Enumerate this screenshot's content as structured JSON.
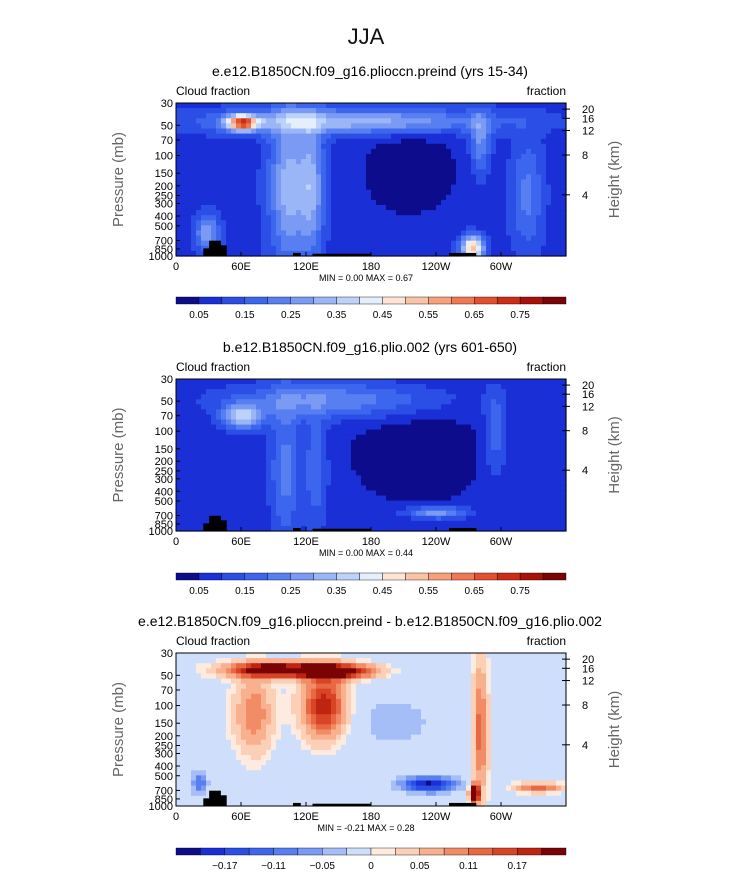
{
  "figure": {
    "season_title": "JJA"
  },
  "chart_data": [
    {
      "type": "heatmap",
      "title": "e.e12.B1850CN.f09_g16.plioccn.preind (yrs 15-34)",
      "left_label": "Cloud fraction",
      "right_label": "fraction",
      "ylabel": "Pressure (mb)",
      "y2label": "Height (km)",
      "x_ticks": [
        "0",
        "60E",
        "120E",
        "180",
        "120W",
        "60W"
      ],
      "x_range": [
        0,
        360
      ],
      "y_ticks": [
        "30",
        "50",
        "70",
        "100",
        "150",
        "200",
        "250",
        "300",
        "400",
        "500",
        "700",
        "850",
        "1000"
      ],
      "y_range_mb": [
        30,
        1000
      ],
      "height_ticks": [
        "20",
        "16",
        "12",
        "8",
        "4"
      ],
      "stats": {
        "min_label": "MIN =",
        "min": "0.00",
        "max_label": "MAX =",
        "max": "0.67"
      },
      "colorbar": {
        "labels": [
          "0.05",
          "0.15",
          "0.25",
          "0.35",
          "0.45",
          "0.55",
          "0.65",
          "0.75"
        ],
        "colors": [
          "#0c0c8c",
          "#1a2fd6",
          "#2b4fe6",
          "#3d66ee",
          "#587ff1",
          "#7a9af4",
          "#9bb6f7",
          "#bdd2fa",
          "#e4eefc",
          "#fde4d4",
          "#fbc3a6",
          "#f7a07c",
          "#f07853",
          "#e4502d",
          "#cc2d14",
          "#a81008",
          "#7a0404"
        ]
      },
      "field_kind": "cloud_a"
    },
    {
      "type": "heatmap",
      "title": "b.e12.B1850CN.f09_g16.plio.002 (yrs 601-650)",
      "left_label": "Cloud fraction",
      "right_label": "fraction",
      "ylabel": "Pressure (mb)",
      "y2label": "Height (km)",
      "x_ticks": [
        "0",
        "60E",
        "120E",
        "180",
        "120W",
        "60W"
      ],
      "x_range": [
        0,
        360
      ],
      "y_ticks": [
        "30",
        "50",
        "70",
        "100",
        "150",
        "200",
        "250",
        "300",
        "400",
        "500",
        "700",
        "850",
        "1000"
      ],
      "y_range_mb": [
        30,
        1000
      ],
      "height_ticks": [
        "20",
        "16",
        "12",
        "8",
        "4"
      ],
      "stats": {
        "min_label": "MIN =",
        "min": "0.00",
        "max_label": "MAX =",
        "max": "0.44"
      },
      "colorbar": {
        "labels": [
          "0.05",
          "0.15",
          "0.25",
          "0.35",
          "0.45",
          "0.55",
          "0.65",
          "0.75"
        ],
        "colors": [
          "#0c0c8c",
          "#1a2fd6",
          "#2b4fe6",
          "#3d66ee",
          "#587ff1",
          "#7a9af4",
          "#9bb6f7",
          "#bdd2fa",
          "#e4eefc",
          "#fde4d4",
          "#fbc3a6",
          "#f7a07c",
          "#f07853",
          "#e4502d",
          "#cc2d14",
          "#a81008",
          "#7a0404"
        ]
      },
      "field_kind": "cloud_b"
    },
    {
      "type": "heatmap",
      "title": "e.e12.B1850CN.f09_g16.plioccn.preind - b.e12.B1850CN.f09_g16.plio.002",
      "left_label": "Cloud fraction",
      "right_label": "fraction",
      "ylabel": "Pressure (mb)",
      "y2label": "Height (km)",
      "x_ticks": [
        "0",
        "60E",
        "120E",
        "180",
        "120W",
        "60W"
      ],
      "x_range": [
        0,
        360
      ],
      "y_ticks": [
        "30",
        "50",
        "70",
        "100",
        "150",
        "200",
        "250",
        "300",
        "400",
        "500",
        "700",
        "850",
        "1000"
      ],
      "y_range_mb": [
        30,
        1000
      ],
      "height_ticks": [
        "20",
        "16",
        "12",
        "8",
        "4"
      ],
      "stats": {
        "min_label": "MIN =",
        "min": "-0.21",
        "max_label": "MAX =",
        "max": "0.28"
      },
      "colorbar": {
        "labels": [
          "−0.17",
          "−0.11",
          "−0.05",
          "0",
          "0.05",
          "0.11",
          "0.17"
        ],
        "colors": [
          "#0c0c8c",
          "#1a2fd6",
          "#2b4fe6",
          "#3d66ee",
          "#587ff1",
          "#7a9af4",
          "#a5bef8",
          "#cfdefb",
          "#fdebe0",
          "#fbd0b6",
          "#f8b08e",
          "#f28c67",
          "#e86843",
          "#d84426",
          "#bf2410",
          "#7a0404"
        ]
      },
      "field_kind": "diff"
    }
  ]
}
